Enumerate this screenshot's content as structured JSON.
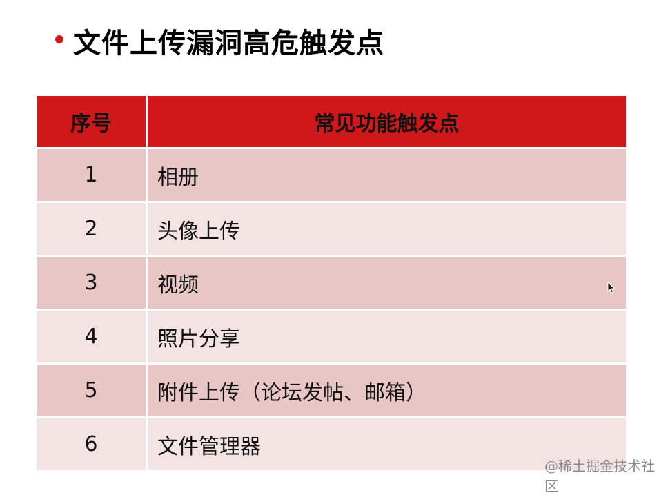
{
  "title": "文件上传漏洞高危触发点",
  "table": {
    "headers": [
      "序号",
      "常见功能触发点"
    ],
    "rows": [
      {
        "num": "1",
        "text": "相册"
      },
      {
        "num": "2",
        "text": "头像上传"
      },
      {
        "num": "3",
        "text": "视频"
      },
      {
        "num": "4",
        "text": "照片分享"
      },
      {
        "num": "5",
        "text": "附件上传（论坛发帖、邮箱）"
      },
      {
        "num": "6",
        "text": "文件管理器"
      }
    ]
  },
  "watermark": "@稀土掘金技术社区",
  "colors": {
    "header": "#d0171a",
    "row_dark": "#e8c6c6",
    "row_light": "#f3e3e3",
    "bullet": "#d0191b"
  }
}
